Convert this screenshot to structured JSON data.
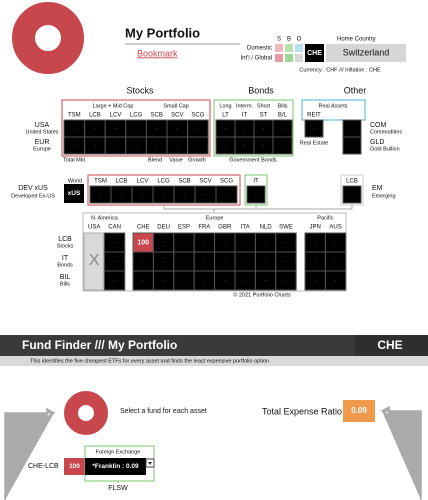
{
  "header": {
    "title": "My Portfolio",
    "bookmark": "Bookmark",
    "sbo": [
      "S",
      "B",
      "O"
    ],
    "domestic": "Domestic",
    "intl": "Int'l / Global",
    "home_country_label": "Home Country",
    "home_country_code": "CHE",
    "home_country_name": "Switzerland",
    "currency_note": "Currency : CHF /// Inflation : CHE"
  },
  "grid": {
    "headings": [
      "Stocks",
      "Bonds",
      "Other"
    ],
    "stocks": {
      "groups": [
        "Large + Mid Cap",
        "Small Cap"
      ],
      "columns": [
        "TSM",
        "LCB",
        "LCV",
        "LCG",
        "SCB",
        "SCV",
        "SCG"
      ],
      "footer": [
        "Total Mkt",
        "Blend",
        "Value",
        "Growth"
      ]
    },
    "bonds": {
      "columns": [
        [
          "Long",
          "LT"
        ],
        [
          "Interm.",
          "IT"
        ],
        [
          "Short",
          "ST"
        ],
        [
          "Bills",
          "B/L"
        ]
      ],
      "footer": "Government Bonds"
    },
    "other": {
      "group": "Real Assets",
      "column": "REIT",
      "footer": "Real Estate",
      "rows": [
        [
          "COM",
          "Commodities"
        ],
        [
          "GLD",
          "Gold Bullion"
        ]
      ]
    },
    "rows": [
      [
        "USA",
        "United States"
      ],
      [
        "EUR",
        "Europe"
      ]
    ],
    "empty_cell": "-"
  },
  "world": {
    "label": "World",
    "region": [
      "DEV xUS",
      "Developed Ex-US"
    ],
    "badge": "xUS",
    "stock_columns": [
      "TSM",
      "LCB",
      "LCV",
      "LCG",
      "SCB",
      "SCV",
      "SCG"
    ],
    "bond_column": "IT",
    "em_column": "LCB",
    "em": [
      "EM",
      "Emerging"
    ]
  },
  "countries": {
    "regions": [
      {
        "name": "N. America",
        "codes": [
          "USA",
          "CAN"
        ]
      },
      {
        "name": "Europe",
        "codes": [
          "CHE",
          "DEU",
          "ESP",
          "FRA",
          "GBR",
          "ITA",
          "NLD",
          "SWE"
        ]
      },
      {
        "name": "Pacific",
        "codes": [
          "JPN",
          "AUS"
        ]
      }
    ],
    "rows": [
      {
        "code": "LCB",
        "name": "Stocks",
        "values": [
          null,
          null,
          100,
          null,
          null,
          null,
          null,
          null,
          null,
          null,
          null,
          null
        ]
      },
      {
        "code": "IT",
        "name": "Bonds",
        "values": [
          null,
          null,
          null,
          null,
          null,
          null,
          null,
          null,
          null,
          null,
          null,
          null
        ]
      },
      {
        "code": "BIL",
        "name": "Bills",
        "values": [
          null,
          null,
          null,
          null,
          null,
          null,
          null,
          null,
          null,
          null,
          null,
          null
        ]
      }
    ],
    "excluded_mark": "X",
    "copyright": "© 2021 Portfolio Charts"
  },
  "fund_finder": {
    "title": "Fund Finder /// My Portfolio",
    "country": "CHE",
    "description": "This identifies the five cheapest ETFs for every asset and finds the least expensive portfolio option",
    "prompt": "Select a fund for each asset",
    "ter_label": "Total Expense Ratio",
    "ter_value": 0.09,
    "asset": "CHE-LCB",
    "asset_weight": 100,
    "fx_label": "Foreign Exchange",
    "fund": "*Franklin : 0.09",
    "ticker": "FLSW"
  }
}
